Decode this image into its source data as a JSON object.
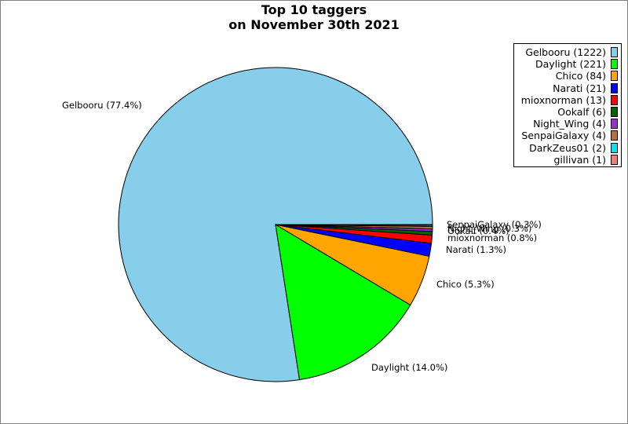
{
  "title_lines": [
    "Top 10 taggers",
    "on November 30th 2021"
  ],
  "chart_data": {
    "type": "pie",
    "title": "Top 10 taggers on November 30th 2021",
    "legend_position": "top-right",
    "slices": [
      {
        "name": "Gelbooru",
        "value": 1222,
        "legend_label": "Gelbooru (1222)",
        "pie_label": "Gelbooru (77.4%)",
        "color": "#87ceeb"
      },
      {
        "name": "Daylight",
        "value": 221,
        "legend_label": "Daylight (221)",
        "pie_label": "Daylight (14.0%)",
        "color": "#00ff00"
      },
      {
        "name": "Chico",
        "value": 84,
        "legend_label": "Chico (84)",
        "pie_label": "Chico (5.3%)",
        "color": "#ffa500"
      },
      {
        "name": "Narati",
        "value": 21,
        "legend_label": "Narati (21)",
        "pie_label": "Narati (1.3%)",
        "color": "#0000ff"
      },
      {
        "name": "mioxnorman",
        "value": 13,
        "legend_label": "mioxnorman (13)",
        "pie_label": "mioxnorman (0.8%)",
        "color": "#ff0000"
      },
      {
        "name": "Ookalf",
        "value": 6,
        "legend_label": "Ookalf (6)",
        "pie_label": "Ookalf (0.4%)",
        "color": "#006400"
      },
      {
        "name": "Night_Wing",
        "value": 4,
        "legend_label": "Night_Wing (4)",
        "pie_label": "Night_Wing (0.3%)",
        "color": "#9932cc"
      },
      {
        "name": "SenpaiGalaxy",
        "value": 4,
        "legend_label": "SenpaiGalaxy (4)",
        "pie_label": "SenpaiGalaxy (0.3%)",
        "color": "#b8733d"
      },
      {
        "name": "DarkZeus01",
        "value": 2,
        "legend_label": "DarkZeus01 (2)",
        "pie_label": "",
        "color": "#00e5ee"
      },
      {
        "name": "gillivan",
        "value": 1,
        "legend_label": "gillivan (1)",
        "pie_label": "",
        "color": "#f08070"
      }
    ]
  }
}
